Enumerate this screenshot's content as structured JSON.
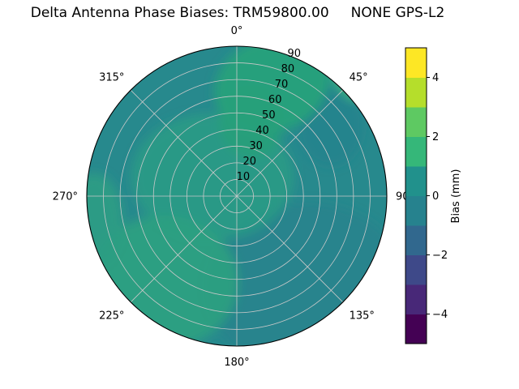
{
  "title": "Delta Antenna Phase Biases: TRM59800.00     NONE GPS-L2",
  "chart_data": {
    "type": "polar_contour",
    "title": "Delta Antenna Phase Biases: TRM59800.00     NONE GPS-L2",
    "antenna": "TRM59800.00",
    "radome": "NONE",
    "signal": "GPS-L2",
    "angular_tick_labels": [
      "0°",
      "45°",
      "90",
      "135°",
      "180°",
      "225°",
      "270°",
      "315°"
    ],
    "angular_tick_degrees": [
      0,
      45,
      90,
      135,
      180,
      225,
      270,
      315
    ],
    "radial_tick_labels": [
      "10",
      "20",
      "30",
      "40",
      "50",
      "60",
      "70",
      "80",
      "90"
    ],
    "radial_max": 90,
    "radial_label_angle_deg": 22.5,
    "grid": true,
    "colorbar": {
      "label": "Bias (mm)",
      "ticks": [
        4,
        2,
        0,
        -2,
        -4
      ],
      "tick_labels": [
        "4",
        "2",
        "0",
        "−2",
        "−4"
      ],
      "range": [
        -5,
        5
      ],
      "colormap": "viridis",
      "band_colors": [
        "#440154",
        "#482878",
        "#3e4989",
        "#31688e",
        "#26828e",
        "#21918c",
        "#35b779",
        "#5ec962",
        "#b5de2b",
        "#fde725"
      ]
    },
    "regions": [
      {
        "name": "background",
        "bias_mm": -0.2,
        "color": "#27898d"
      },
      {
        "name": "center-green",
        "bias_mm": 0.7,
        "color": "#2a9c85"
      },
      {
        "name": "top-green",
        "bias_mm": 1.2,
        "color": "#28a07b"
      },
      {
        "name": "edge-45-bright",
        "bias_mm": 1.8,
        "color": "#3cb57e"
      },
      {
        "name": "bottom-left-green",
        "bias_mm": 1.0,
        "color": "#2ca181"
      },
      {
        "name": "left-edge-green",
        "bias_mm": 0.8,
        "color": "#2b9d84"
      },
      {
        "name": "lower-dark",
        "bias_mm": -0.8,
        "color": "#247f8d"
      }
    ]
  }
}
